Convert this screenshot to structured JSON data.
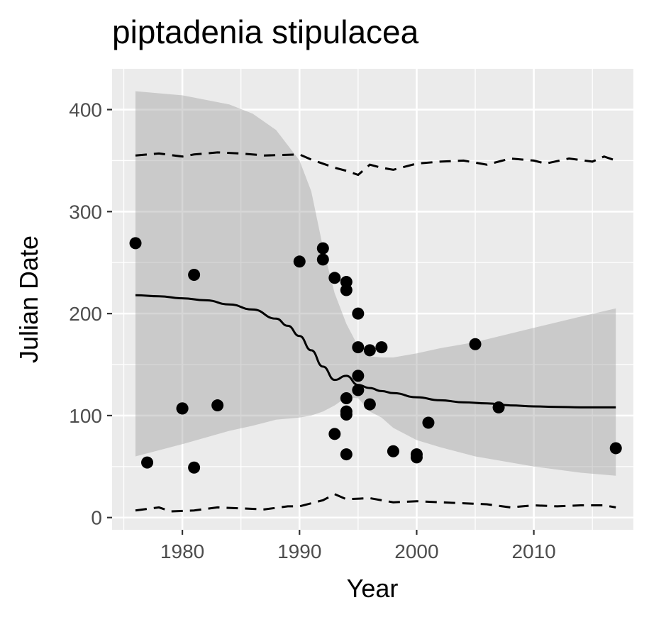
{
  "chart_data": {
    "type": "scatter",
    "title": "piptadenia stipulacea",
    "xlabel": "Year",
    "ylabel": "Julian Date",
    "xlim": [
      1974,
      2018.5
    ],
    "ylim": [
      -12,
      440
    ],
    "xticks": [
      1980,
      1990,
      2000,
      2010
    ],
    "yticks": [
      0,
      100,
      200,
      300,
      400
    ],
    "grid": true,
    "points": [
      {
        "x": 1976,
        "y": 269
      },
      {
        "x": 1977,
        "y": 54
      },
      {
        "x": 1980,
        "y": 107
      },
      {
        "x": 1980,
        "y": 107
      },
      {
        "x": 1981,
        "y": 238
      },
      {
        "x": 1981,
        "y": 49
      },
      {
        "x": 1983,
        "y": 110
      },
      {
        "x": 1990,
        "y": 251
      },
      {
        "x": 1992,
        "y": 264
      },
      {
        "x": 1992,
        "y": 253
      },
      {
        "x": 1993,
        "y": 235
      },
      {
        "x": 1993,
        "y": 82
      },
      {
        "x": 1994,
        "y": 231
      },
      {
        "x": 1994,
        "y": 223
      },
      {
        "x": 1994,
        "y": 117
      },
      {
        "x": 1994,
        "y": 104
      },
      {
        "x": 1994,
        "y": 101
      },
      {
        "x": 1994,
        "y": 62
      },
      {
        "x": 1995,
        "y": 200
      },
      {
        "x": 1995,
        "y": 167
      },
      {
        "x": 1995,
        "y": 139
      },
      {
        "x": 1995,
        "y": 125
      },
      {
        "x": 1996,
        "y": 164
      },
      {
        "x": 1996,
        "y": 111
      },
      {
        "x": 1997,
        "y": 167
      },
      {
        "x": 1998,
        "y": 65
      },
      {
        "x": 2000,
        "y": 62
      },
      {
        "x": 2000,
        "y": 59
      },
      {
        "x": 2001,
        "y": 93
      },
      {
        "x": 2005,
        "y": 170
      },
      {
        "x": 2007,
        "y": 108
      },
      {
        "x": 2017,
        "y": 68
      }
    ],
    "fit_line": {
      "x": [
        1976,
        1978,
        1980,
        1982,
        1984,
        1986,
        1988,
        1989,
        1990,
        1991,
        1992,
        1993,
        1994,
        1995,
        1996,
        1997,
        1998,
        2000,
        2002,
        2004,
        2006,
        2008,
        2010,
        2012,
        2014,
        2017
      ],
      "y": [
        218,
        217,
        215,
        213,
        209,
        204,
        195,
        188,
        178,
        164,
        148,
        135,
        139,
        130,
        127,
        124,
        122,
        118,
        115,
        113,
        112,
        110,
        109,
        108.5,
        108,
        108
      ]
    },
    "confidence_band": {
      "x": [
        1976,
        1980,
        1984,
        1986,
        1988,
        1990,
        1991,
        1992,
        1993,
        1994,
        1995,
        1996,
        1997,
        1998,
        2000,
        2002,
        2005,
        2010,
        2014,
        2017
      ],
      "upper": [
        418,
        414,
        405,
        396,
        380,
        350,
        320,
        265,
        220,
        190,
        168,
        158,
        157,
        157,
        161,
        166,
        172,
        186,
        197,
        205
      ],
      "lower": [
        60,
        72,
        85,
        90,
        96,
        98,
        100,
        104,
        110,
        118,
        117,
        104,
        98,
        88,
        76,
        69,
        60,
        50,
        44,
        41
      ]
    },
    "upper_quantile": {
      "x": [
        1976,
        1978,
        1980,
        1981,
        1983,
        1985,
        1987,
        1990,
        1991,
        1993,
        1994,
        1995,
        1996,
        1997,
        1998,
        2000,
        2002,
        2004,
        2006,
        2008,
        2010,
        2011,
        2013,
        2015,
        2016,
        2017
      ],
      "y": [
        355,
        357,
        354,
        356,
        358,
        357,
        355,
        356,
        351,
        343,
        340,
        336,
        346,
        343,
        341,
        347,
        349,
        350,
        346,
        352,
        350,
        347,
        352,
        349,
        354,
        350
      ]
    },
    "lower_quantile": {
      "x": [
        1976,
        1978,
        1979,
        1981,
        1983,
        1985,
        1987,
        1989,
        1990,
        1992,
        1993,
        1994,
        1996,
        1998,
        2000,
        2002,
        2004,
        2006,
        2008,
        2010,
        2012,
        2014,
        2016,
        2017
      ],
      "y": [
        7,
        10,
        6,
        7,
        10,
        9,
        8,
        11,
        11,
        17,
        23,
        18,
        19,
        15,
        16,
        15,
        14,
        13,
        10,
        12,
        11,
        12,
        12,
        10
      ]
    }
  }
}
